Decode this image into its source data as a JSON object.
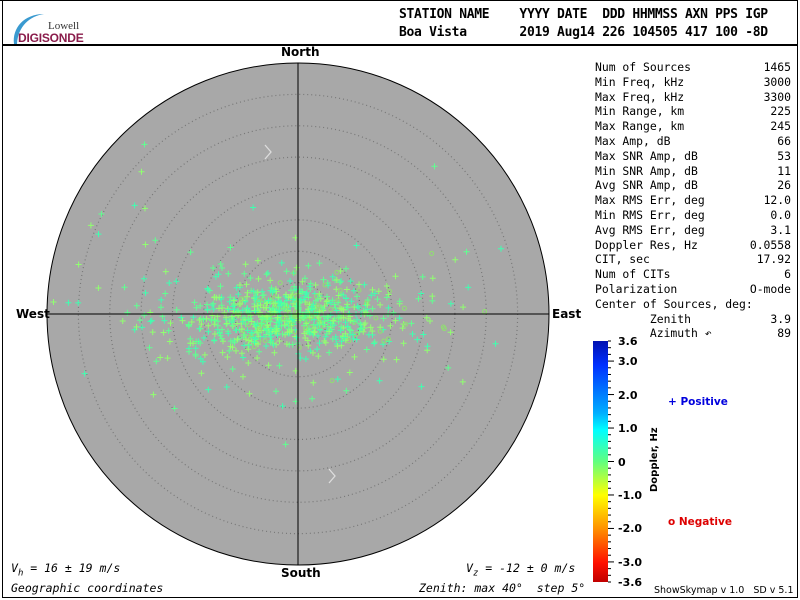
{
  "header": {
    "logo": {
      "line1": "Lowell",
      "line2": "DIGISONDE"
    },
    "columns_label": "STATION NAME    YYYY DATE  DDD HHMMSS AXN PPS IGP",
    "values_line": "Boa Vista       2019 Aug14 226 104505 417 100 -8D"
  },
  "compass": {
    "north": "North",
    "south": "South",
    "east": "East",
    "west": "West"
  },
  "stats": [
    {
      "label": "Num of Sources",
      "value": "1465"
    },
    {
      "label": "Min Freq, kHz",
      "value": "3000"
    },
    {
      "label": "Max Freq, kHz",
      "value": "3300"
    },
    {
      "label": "Min Range, km",
      "value": "225"
    },
    {
      "label": "Max Range, km",
      "value": "245"
    },
    {
      "label": "Max Amp, dB",
      "value": "66"
    },
    {
      "label": "Max SNR Amp, dB",
      "value": "53"
    },
    {
      "label": "Min SNR Amp, dB",
      "value": "11"
    },
    {
      "label": "Avg SNR Amp, dB",
      "value": "26"
    },
    {
      "label": "Max RMS Err, deg",
      "value": "12.0"
    },
    {
      "label": "Min RMS Err, deg",
      "value": "0.0"
    },
    {
      "label": "Avg RMS Err, deg",
      "value": "3.1"
    },
    {
      "label": "Doppler Res, Hz",
      "value": "0.0558"
    },
    {
      "label": "CIT, sec",
      "value": "17.92"
    },
    {
      "label": "Num of CITs",
      "value": "6"
    },
    {
      "label": "Polarization",
      "value": "O-mode"
    },
    {
      "label": "Center of Sources, deg:",
      "value": ""
    },
    {
      "label": "        Zenith",
      "value": "3.9"
    },
    {
      "label": "        Azimuth ↶",
      "value": "89"
    }
  ],
  "colorbar": {
    "title": "Doppler, Hz",
    "ticks": [
      "3.6",
      "3.0",
      "2.0",
      "1.0",
      "0",
      "-1.0",
      "-2.0",
      "-3.0",
      "-3.6"
    ],
    "range": [
      -3.6,
      3.6
    ]
  },
  "legend": {
    "positive": {
      "symbol": "+",
      "label": "Positive",
      "color": "#0000dd"
    },
    "negative": {
      "symbol": "o",
      "label": "Negative",
      "color": "#dd0000"
    }
  },
  "footer": {
    "vh": {
      "symbol": "V",
      "sub": "h",
      "text": " = 16 ± 19 m/s"
    },
    "vz": {
      "symbol": "V",
      "sub": "z",
      "text": " = -12 ± 0 m/s"
    },
    "coords": "Geographic coordinates",
    "zenith": "Zenith: max 40°  step 5°",
    "version": "ShowSkymap v 1.0   SD v 5.1"
  },
  "chart_data": {
    "type": "scatter",
    "projection": "polar skymap",
    "zenith_max_deg": 40,
    "zenith_step_deg": 5,
    "num_sources": 1465,
    "center_zenith_deg": 3.9,
    "center_azimuth_deg": 89,
    "marker_positive": "+",
    "marker_negative": "o",
    "background_color": "#a8a8a8",
    "point_colors": [
      "#40ffb0",
      "#60ff90",
      "#90ff70"
    ]
  }
}
